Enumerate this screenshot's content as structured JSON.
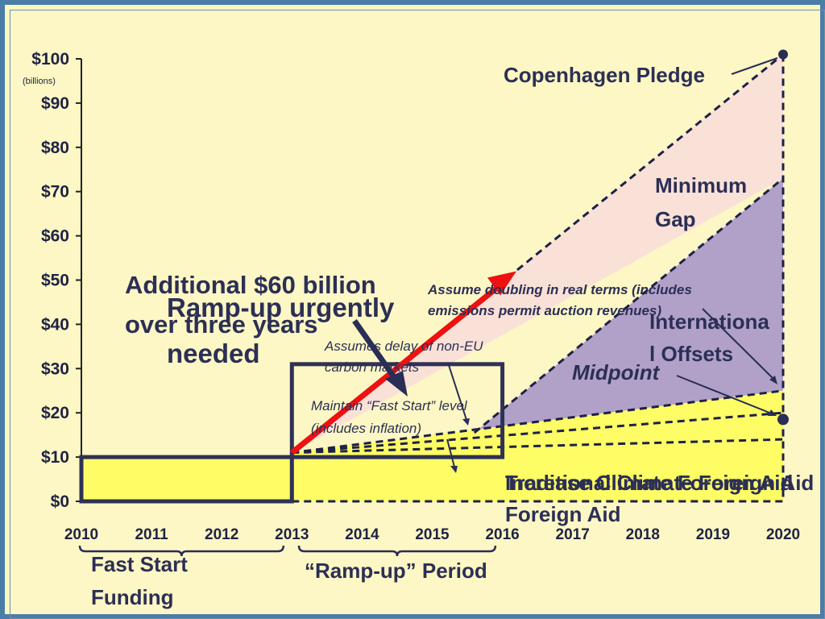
{
  "chart_data": {
    "type": "area",
    "x": [
      2010,
      2011,
      2012,
      2013,
      2014,
      2015,
      2016,
      2017,
      2018,
      2019,
      2020
    ],
    "x_tick_labels": [
      "2010",
      "2011",
      "2012",
      "2013",
      "2014",
      "2015",
      "2016",
      "2017",
      "2018",
      "2019",
      "2020"
    ],
    "y_ticks": [
      0,
      10,
      20,
      30,
      40,
      50,
      60,
      70,
      80,
      90,
      100
    ],
    "y_tick_labels": [
      "$0",
      "$10",
      "$20",
      "$30",
      "$40",
      "$50",
      "$60",
      "$70",
      "$80",
      "$90",
      "$100"
    ],
    "y_unit_label": "(billions)",
    "ylim": [
      0,
      100
    ],
    "xlim": [
      2010,
      2020
    ],
    "series": [
      {
        "name": "Copenhagen Pledge",
        "x": [
          2013,
          2020
        ],
        "values": [
          11,
          101
        ]
      },
      {
        "name": "Minimum Gap",
        "x": [
          2013,
          2020
        ],
        "values": [
          11,
          73
        ]
      },
      {
        "name": "Midpoint",
        "x": [
          2013,
          2020
        ],
        "values": [
          11,
          25
        ]
      },
      {
        "x": [
          2013,
          2020
        ],
        "values": [
          11,
          20
        ]
      },
      {
        "x": [
          2013,
          2020
        ],
        "values": [
          11,
          14
        ]
      }
    ],
    "fast_start_level": 10,
    "ramp_arrow": {
      "from": [
        2013,
        11
      ],
      "to": [
        2016.2,
        52
      ]
    },
    "pledge_point": [
      2020,
      101
    ],
    "midpoint_point": [
      2020,
      18.5
    ],
    "colors": {
      "background": "#fcf7c4",
      "frame": "#4a7da8",
      "pledge_gap_fill": "#f9e1d8",
      "minimum_gap_fill": "#b1a1c9",
      "aid_fill": "#fefd66",
      "dashed_line": "#1e2147",
      "box": "#2f3157",
      "arrow_red": "#ee1111",
      "text": "#2c2f55"
    }
  },
  "annotations": {
    "copenhagen_pledge": "Copenhagen Pledge",
    "minimum_gap_1": "Minimum",
    "minimum_gap_2": "Gap",
    "international_offsets_1": "Internationa",
    "international_offsets_2": "l Offsets",
    "midpoint": "Midpoint",
    "additional_1": "Additional $60 billion",
    "additional_2": "over three years",
    "ramp_up_urgently_1": "Ramp-up urgently",
    "ramp_up_urgently_2": "needed",
    "assume_doubling_1": "Assume doubling in real terms (includes",
    "assume_doubling_2": "emissions permit auction revenues)",
    "assumes_delay_1": "Assumes delay of non-EU",
    "assumes_delay_2": "carbon markets",
    "maintain_fast_start_1": "Maintain “Fast Start” level",
    "maintain_fast_start_2": "(includes inflation)",
    "traditional_foreign_aid_1": "Traditional Climate Foreign Aid",
    "increase_climate_foreign_aid_1": "Increase Climate Foreign Aid",
    "foreign_aid_2": "Foreign Aid",
    "fast_start_funding_1": "Fast Start",
    "fast_start_funding_2": "Funding",
    "ramp_up_period": "“Ramp-up” Period"
  }
}
